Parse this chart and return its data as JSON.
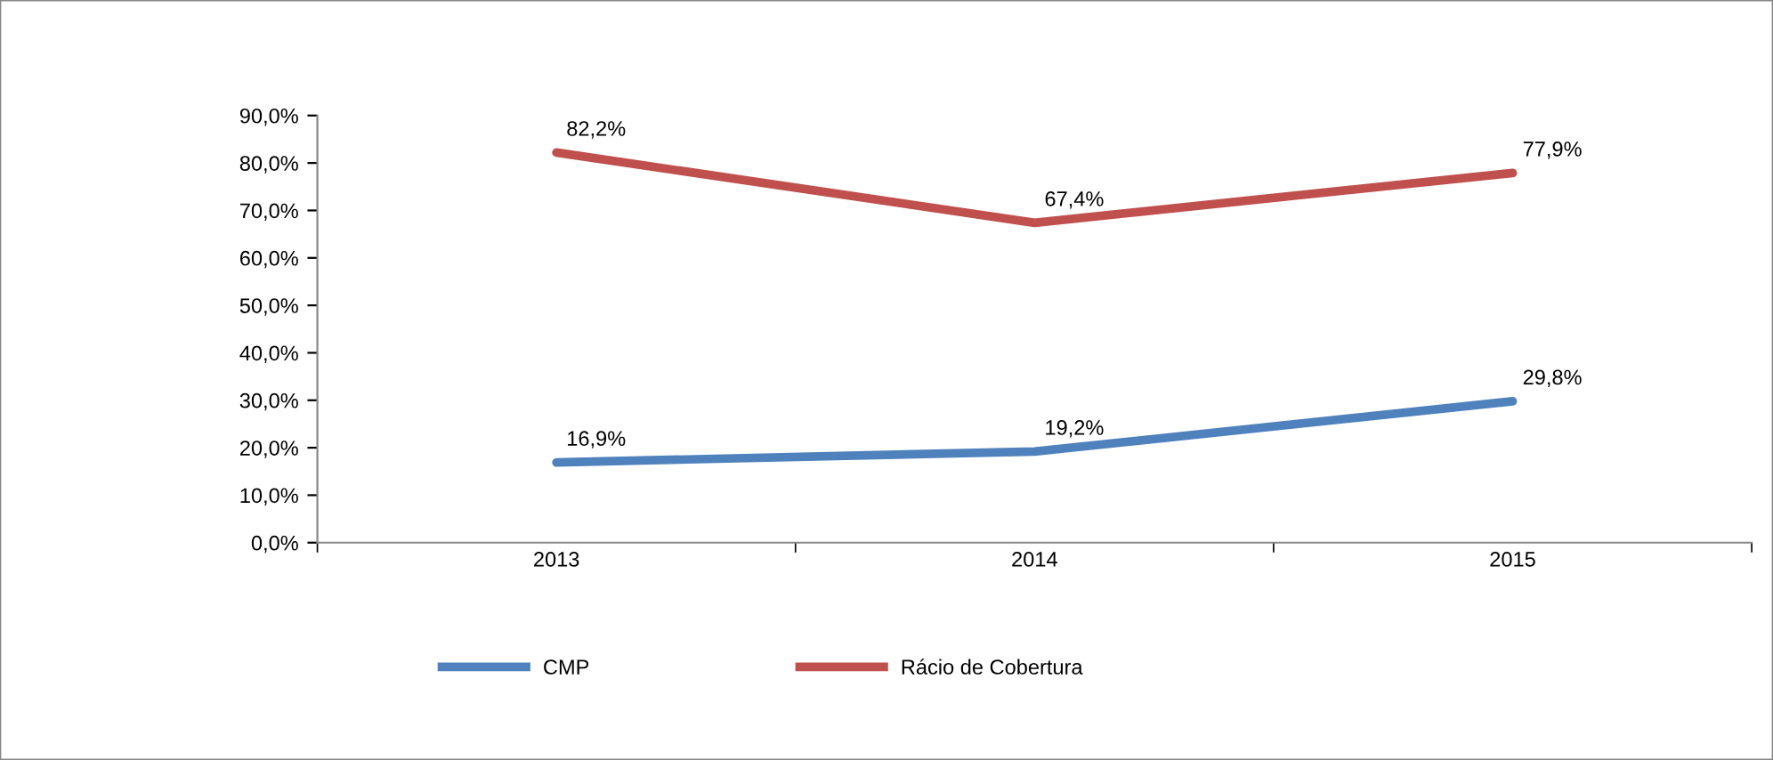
{
  "chart_data": {
    "type": "line",
    "categories": [
      "2013",
      "2014",
      "2015"
    ],
    "series": [
      {
        "name": "CMP",
        "color": "#4f81bd",
        "values": [
          16.9,
          19.2,
          29.8
        ],
        "value_labels": [
          "16,9%",
          "19,2%",
          "29,8%"
        ]
      },
      {
        "name": "Rácio de Cobertura",
        "color": "#c0504d",
        "values": [
          82.2,
          67.4,
          77.9
        ],
        "value_labels": [
          "82,2%",
          "67,4%",
          "77,9%"
        ]
      }
    ],
    "ylim": [
      0,
      90
    ],
    "yticks": [
      {
        "value": 0,
        "label": "0,0%"
      },
      {
        "value": 10,
        "label": "10,0%"
      },
      {
        "value": 20,
        "label": "20,0%"
      },
      {
        "value": 30,
        "label": "30,0%"
      },
      {
        "value": 40,
        "label": "40,0%"
      },
      {
        "value": 50,
        "label": "50,0%"
      },
      {
        "value": 60,
        "label": "60,0%"
      },
      {
        "value": 70,
        "label": "70,0%"
      },
      {
        "value": 80,
        "label": "80,0%"
      },
      {
        "value": 90,
        "label": "90,0%"
      }
    ],
    "grid": false,
    "legend": "bottom",
    "marker": "none",
    "line_style": "solid"
  }
}
